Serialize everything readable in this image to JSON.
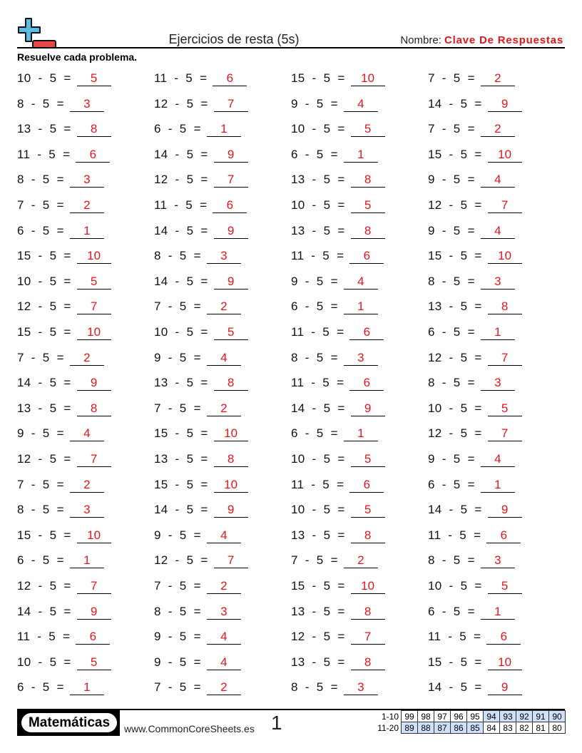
{
  "header": {
    "title": "Ejercicios de resta (5s)",
    "name_label": "Nombre:",
    "name_value": "Clave De Respuestas",
    "instructions": "Resuelve cada problema.",
    "logo_icon": "plus-minus-logo-icon"
  },
  "colors": {
    "answer": "#e8141b",
    "logo_plus": "#5bbde4",
    "logo_minus": "#e84848",
    "score_highlight": "#cfe0fb"
  },
  "columns": [
    [
      [
        "10 - 5 =",
        "5"
      ],
      [
        "8 - 5 =",
        "3"
      ],
      [
        "13 - 5 =",
        "8"
      ],
      [
        "11 - 5 =",
        "6"
      ],
      [
        "8 - 5 =",
        "3"
      ],
      [
        "7 - 5 =",
        "2"
      ],
      [
        "6 - 5 =",
        "1"
      ],
      [
        "15 - 5 =",
        "10"
      ],
      [
        "10 - 5 =",
        "5"
      ],
      [
        "12 - 5 =",
        "7"
      ],
      [
        "15 - 5 =",
        "10"
      ],
      [
        "7 - 5 =",
        "2"
      ],
      [
        "14 - 5 =",
        "9"
      ],
      [
        "13 - 5 =",
        "8"
      ],
      [
        "9 - 5 =",
        "4"
      ],
      [
        "12 - 5 =",
        "7"
      ],
      [
        "7 - 5 =",
        "2"
      ],
      [
        "8 - 5 =",
        "3"
      ],
      [
        "15 - 5 =",
        "10"
      ],
      [
        "6 - 5 =",
        "1"
      ],
      [
        "12 - 5 =",
        "7"
      ],
      [
        "14 - 5 =",
        "9"
      ],
      [
        "11 - 5 =",
        "6"
      ],
      [
        "10 - 5 =",
        "5"
      ],
      [
        "6 - 5 =",
        "1"
      ]
    ],
    [
      [
        "11 - 5 =",
        "6"
      ],
      [
        "12 - 5 =",
        "7"
      ],
      [
        "6 - 5 =",
        "1"
      ],
      [
        "14 - 5 =",
        "9"
      ],
      [
        "12 - 5 =",
        "7"
      ],
      [
        "11 - 5 =",
        "6"
      ],
      [
        "14 - 5 =",
        "9"
      ],
      [
        "8 - 5 =",
        "3"
      ],
      [
        "14 - 5 =",
        "9"
      ],
      [
        "7 - 5 =",
        "2"
      ],
      [
        "10 - 5 =",
        "5"
      ],
      [
        "9 - 5 =",
        "4"
      ],
      [
        "13 - 5 =",
        "8"
      ],
      [
        "7 - 5 =",
        "2"
      ],
      [
        "15 - 5 =",
        "10"
      ],
      [
        "13 - 5 =",
        "8"
      ],
      [
        "15 - 5 =",
        "10"
      ],
      [
        "14 - 5 =",
        "9"
      ],
      [
        "9 - 5 =",
        "4"
      ],
      [
        "12 - 5 =",
        "7"
      ],
      [
        "7 - 5 =",
        "2"
      ],
      [
        "8 - 5 =",
        "3"
      ],
      [
        "9 - 5 =",
        "4"
      ],
      [
        "9 - 5 =",
        "4"
      ],
      [
        "7 - 5 =",
        "2"
      ]
    ],
    [
      [
        "15 - 5 =",
        "10"
      ],
      [
        "9 - 5 =",
        "4"
      ],
      [
        "10 - 5 =",
        "5"
      ],
      [
        "6 - 5 =",
        "1"
      ],
      [
        "13 - 5 =",
        "8"
      ],
      [
        "10 - 5 =",
        "5"
      ],
      [
        "13 - 5 =",
        "8"
      ],
      [
        "11 - 5 =",
        "6"
      ],
      [
        "9 - 5 =",
        "4"
      ],
      [
        "6 - 5 =",
        "1"
      ],
      [
        "11 - 5 =",
        "6"
      ],
      [
        "8 - 5 =",
        "3"
      ],
      [
        "11 - 5 =",
        "6"
      ],
      [
        "14 - 5 =",
        "9"
      ],
      [
        "6 - 5 =",
        "1"
      ],
      [
        "10 - 5 =",
        "5"
      ],
      [
        "11 - 5 =",
        "6"
      ],
      [
        "10 - 5 =",
        "5"
      ],
      [
        "13 - 5 =",
        "8"
      ],
      [
        "7 - 5 =",
        "2"
      ],
      [
        "15 - 5 =",
        "10"
      ],
      [
        "13 - 5 =",
        "8"
      ],
      [
        "12 - 5 =",
        "7"
      ],
      [
        "13 - 5 =",
        "8"
      ],
      [
        "8 - 5 =",
        "3"
      ]
    ],
    [
      [
        "7 - 5 =",
        "2"
      ],
      [
        "14 - 5 =",
        "9"
      ],
      [
        "7 - 5 =",
        "2"
      ],
      [
        "15 - 5 =",
        "10"
      ],
      [
        "9 - 5 =",
        "4"
      ],
      [
        "12 - 5 =",
        "7"
      ],
      [
        "9 - 5 =",
        "4"
      ],
      [
        "15 - 5 =",
        "10"
      ],
      [
        "8 - 5 =",
        "3"
      ],
      [
        "13 - 5 =",
        "8"
      ],
      [
        "6 - 5 =",
        "1"
      ],
      [
        "12 - 5 =",
        "7"
      ],
      [
        "8 - 5 =",
        "3"
      ],
      [
        "10 - 5 =",
        "5"
      ],
      [
        "12 - 5 =",
        "7"
      ],
      [
        "9 - 5 =",
        "4"
      ],
      [
        "6 - 5 =",
        "1"
      ],
      [
        "14 - 5 =",
        "9"
      ],
      [
        "11 - 5 =",
        "6"
      ],
      [
        "8 - 5 =",
        "3"
      ],
      [
        "10 - 5 =",
        "5"
      ],
      [
        "6 - 5 =",
        "1"
      ],
      [
        "11 - 5 =",
        "6"
      ],
      [
        "15 - 5 =",
        "10"
      ],
      [
        "14 - 5 =",
        "9"
      ]
    ]
  ],
  "footer": {
    "brand": "Matemáticas",
    "site": "www.CommonCoreSheets.es",
    "page": "1",
    "score_rows": [
      {
        "label": "1-10",
        "values": [
          "99",
          "98",
          "97",
          "96",
          "95",
          "94",
          "93",
          "92",
          "91",
          "90"
        ],
        "highlight": [
          5,
          6,
          7,
          8,
          9
        ]
      },
      {
        "label": "11-20",
        "values": [
          "89",
          "88",
          "87",
          "86",
          "85",
          "84",
          "83",
          "82",
          "81",
          "80"
        ],
        "highlight": [
          0,
          1,
          2,
          3,
          4
        ]
      }
    ]
  }
}
